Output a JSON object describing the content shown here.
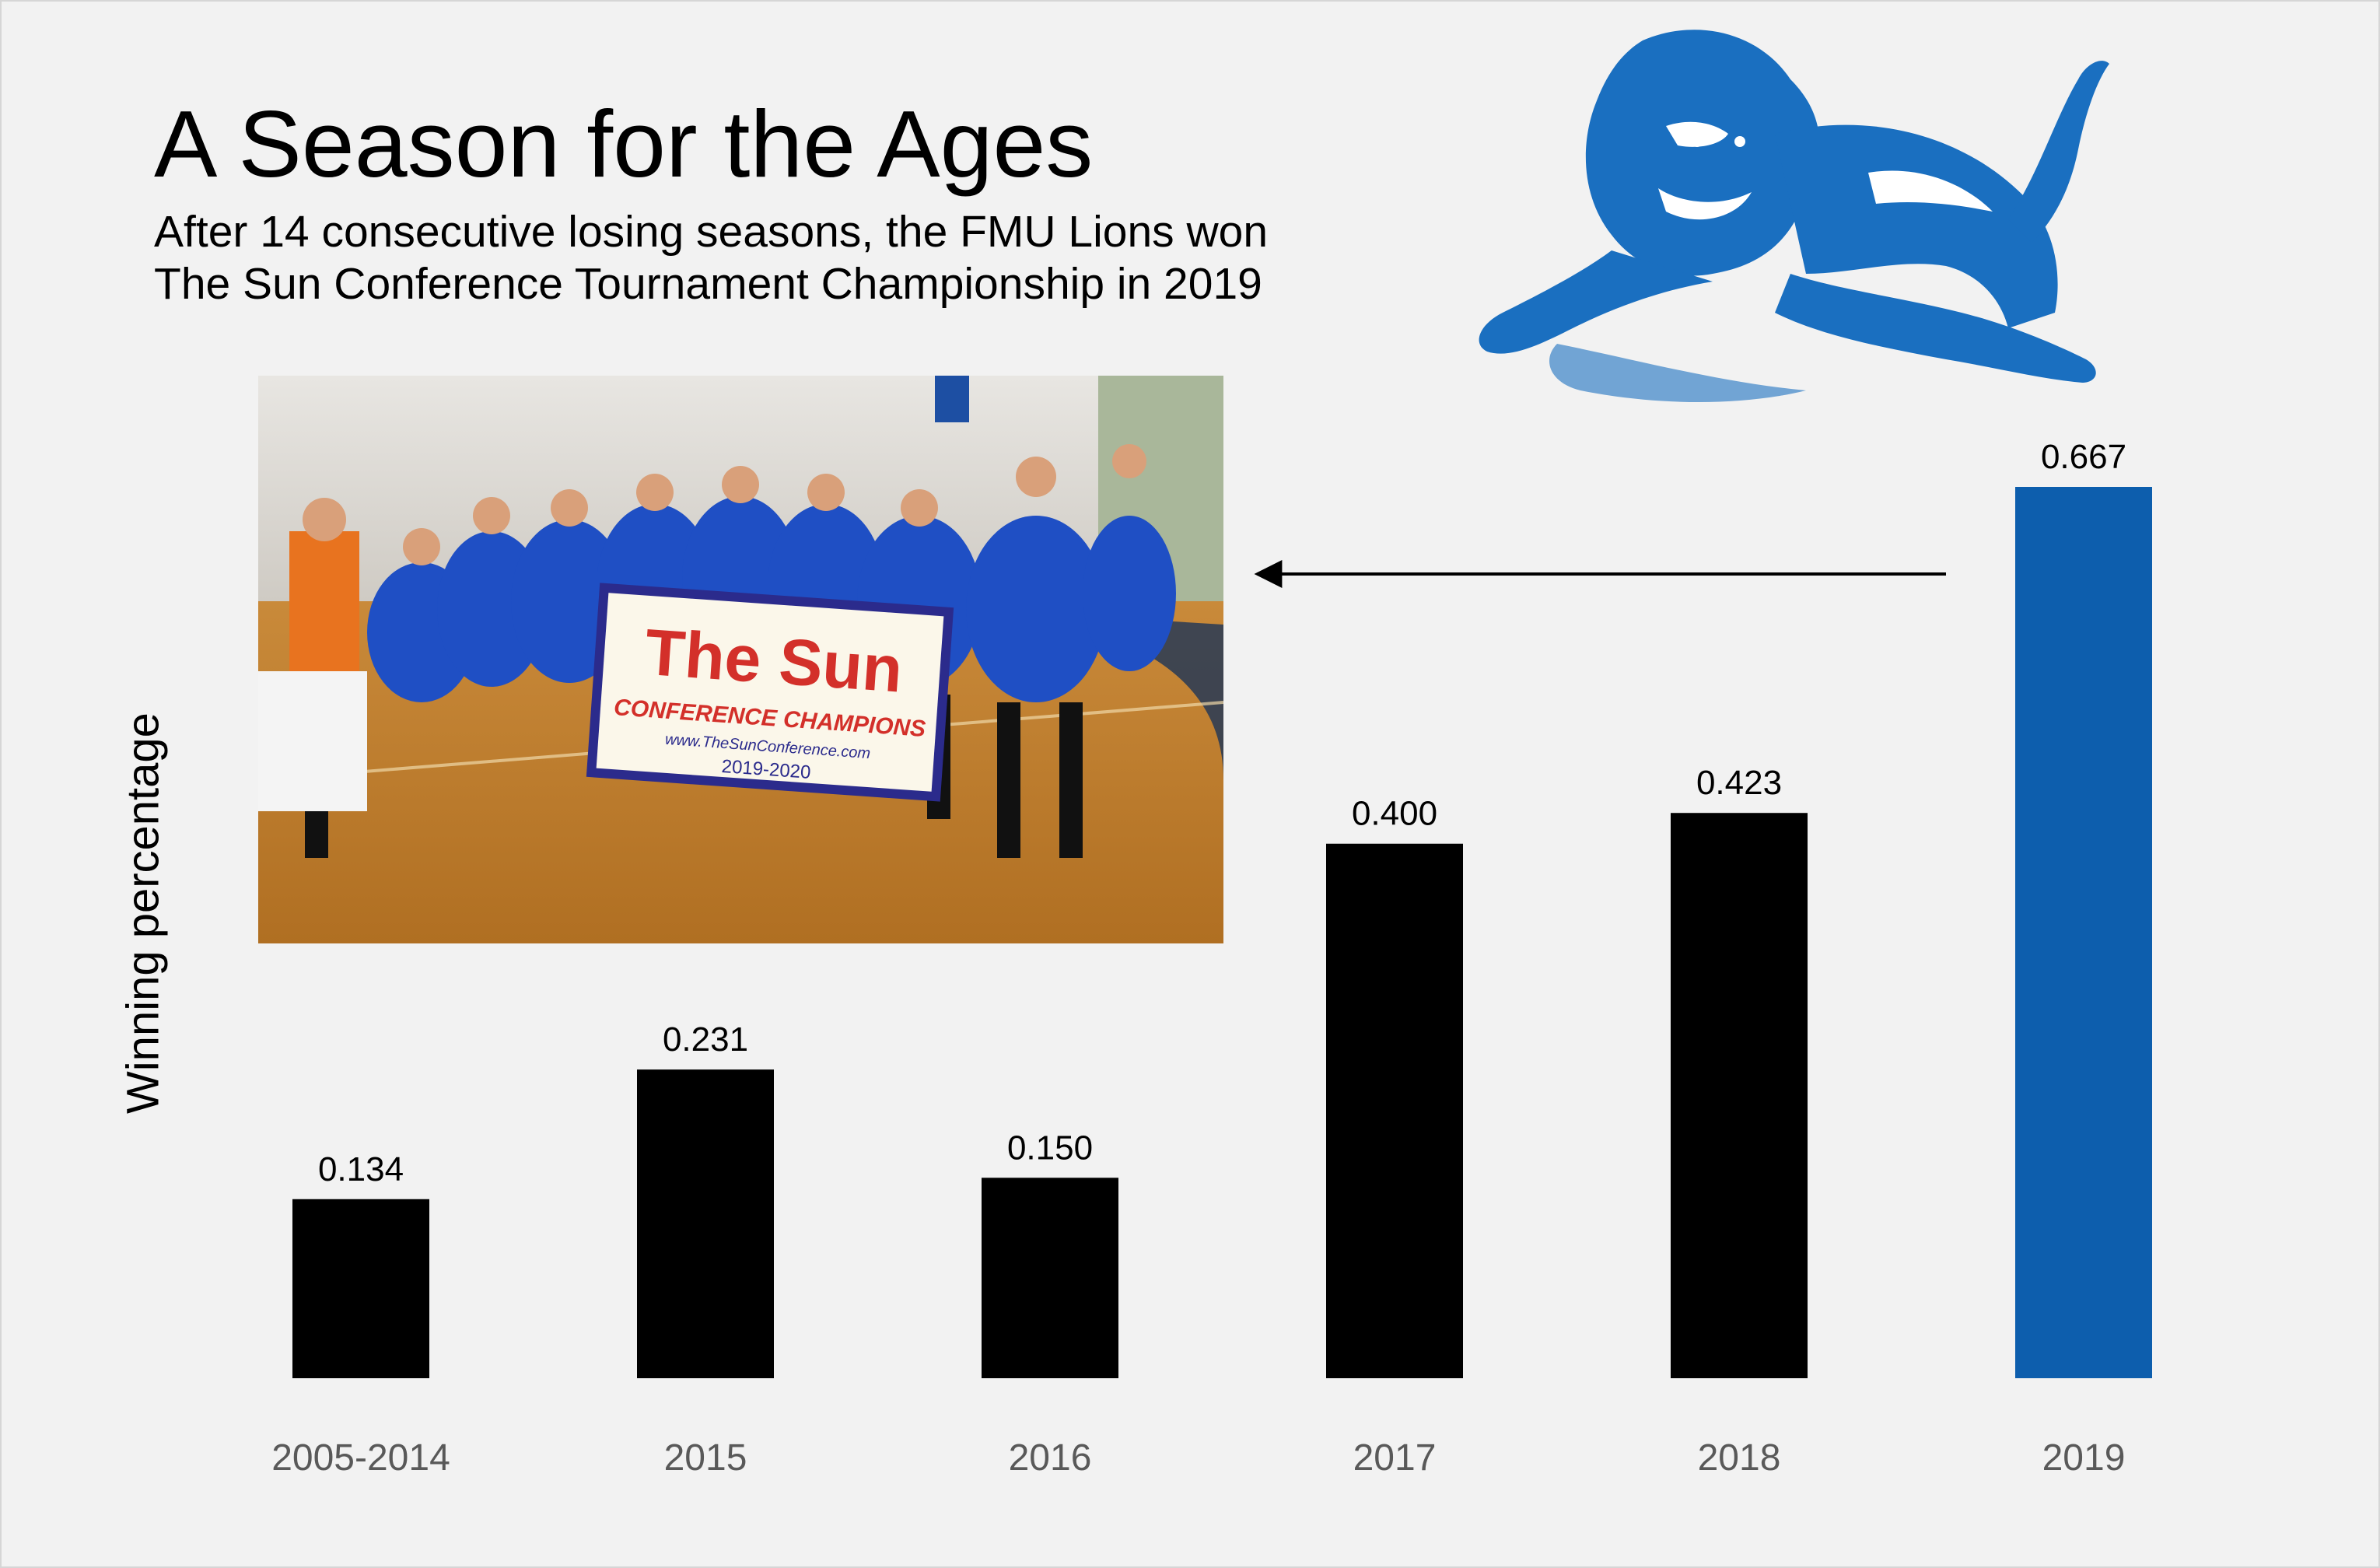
{
  "title": "A Season for the Ages",
  "subtitle_lines": [
    "After 14 consecutive losing seasons, the FMU Lions won",
    "The Sun Conference Tournament Championship in 2019"
  ],
  "colors": {
    "bar": "#000000",
    "highlight": "#0d5ead",
    "background": "#f2f2f2",
    "logo": "#1a6fc0"
  },
  "photo": {
    "banner_title": "The Sun",
    "banner_line": "CONFERENCE CHAMPIONS",
    "banner_url": "www.TheSunConference.com",
    "banner_years": "2019-2020"
  },
  "logo": {
    "icon": "lion-icon"
  },
  "chart_data": {
    "type": "bar",
    "title": "A Season for the Ages",
    "xlabel": "",
    "ylabel": "Winning percentage",
    "categories": [
      "2005-2014",
      "2015",
      "2016",
      "2017",
      "2018",
      "2019"
    ],
    "values": [
      0.134,
      0.231,
      0.15,
      0.4,
      0.423,
      0.667
    ],
    "value_labels": [
      "0.134",
      "0.231",
      "0.150",
      "0.400",
      "0.423",
      "0.667"
    ],
    "highlight_category": "2019",
    "ylim": [
      0,
      0.667
    ],
    "y_axis_visible": false,
    "grid": false,
    "legend": "none",
    "annotation": "arrow from the 2019 bar pointing to the team photo"
  }
}
